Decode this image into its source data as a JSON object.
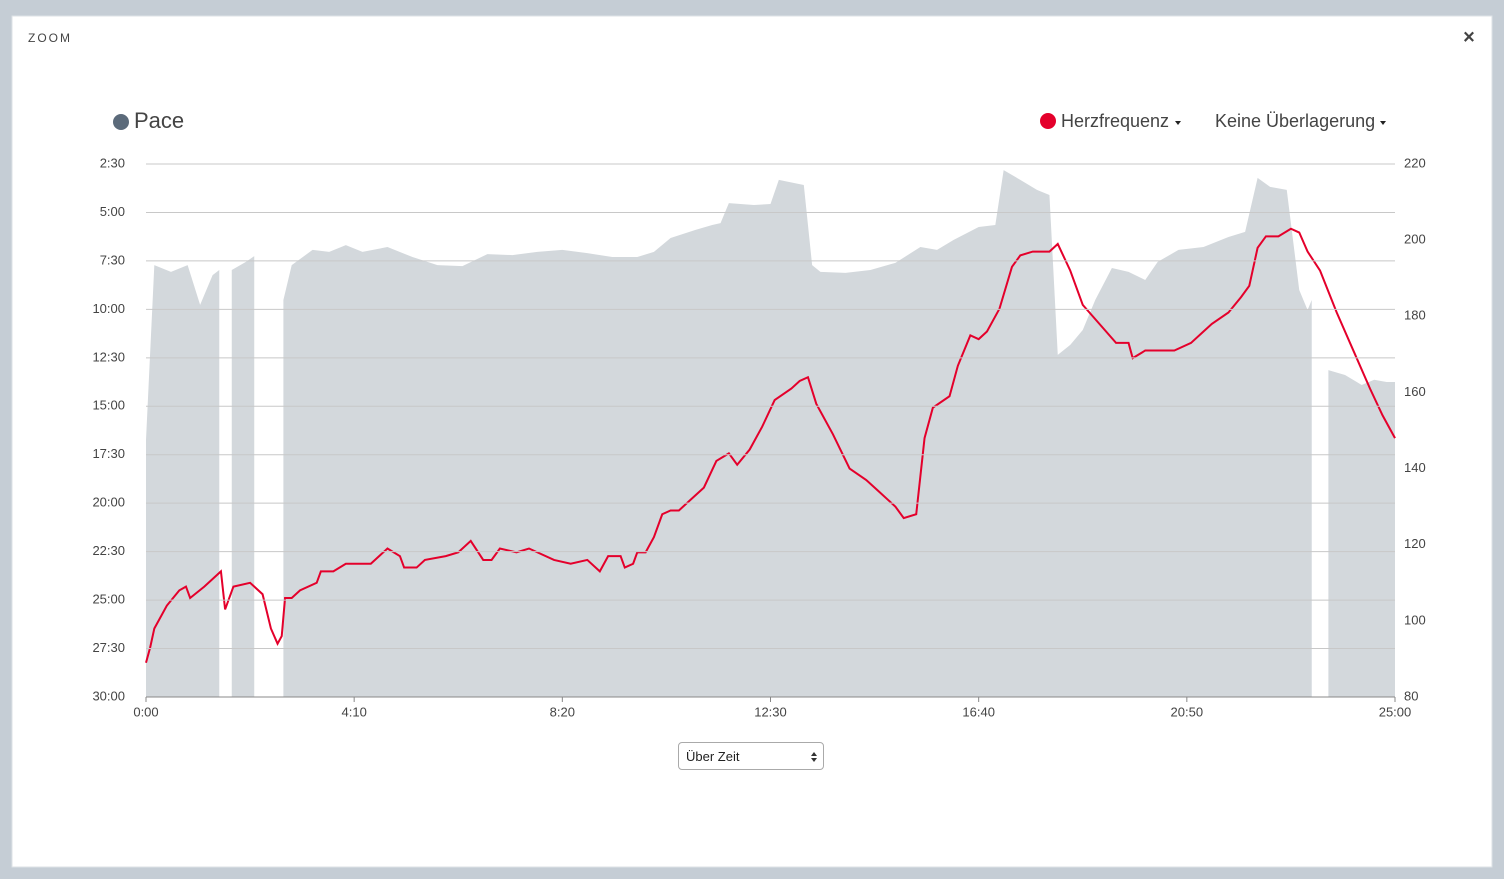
{
  "modal": {
    "title": "ZOOM",
    "close": "×"
  },
  "controls": {
    "overlay_select": "Keine Überlagerung",
    "x_mode_select": "Über Zeit"
  },
  "chart_data": {
    "type": "area-line",
    "series": [
      {
        "name": "Pace",
        "color": "#d3d8dc",
        "marker_color": "#5b6a7a",
        "x": [
          0,
          10,
          30,
          50,
          65,
          80,
          88,
          95,
          103,
          120,
          130,
          145,
          165,
          175,
          200,
          220,
          240,
          260,
          290,
          320,
          350,
          380,
          410,
          440,
          470,
          500,
          530,
          560,
          590,
          610,
          630,
          660,
          680,
          690,
          700,
          730,
          750,
          760,
          790,
          800,
          810,
          840,
          870,
          900,
          930,
          950,
          970,
          1000,
          1020,
          1030,
          1050,
          1070,
          1085,
          1095,
          1110,
          1125,
          1140,
          1160,
          1180,
          1200,
          1215,
          1240,
          1270,
          1300,
          1320,
          1335,
          1350,
          1370,
          1385,
          1395,
          1400,
          1410,
          1420,
          1440,
          1460,
          1475,
          1490,
          1500
        ],
        "values": [
          1004,
          463,
          484,
          463,
          586,
          494,
          478,
          null,
          478,
          453,
          435,
          null,
          571,
          463,
          416,
          422,
          401,
          422,
          407,
          438,
          463,
          466,
          429,
          432,
          422,
          416,
          426,
          438,
          438,
          422,
          379,
          354,
          339,
          333,
          271,
          277,
          274,
          199,
          215,
          463,
          484,
          487,
          478,
          456,
          407,
          416,
          385,
          345,
          339,
          169,
          199,
          230,
          246,
          741,
          710,
          664,
          571,
          472,
          484,
          509,
          453,
          416,
          407,
          376,
          360,
          193,
          221,
          230,
          540,
          602,
          571,
          null,
          788,
          803,
          834,
          818,
          825,
          825
        ]
      },
      {
        "name": "Herzfrequenz",
        "color": "#e4002b",
        "axis": "y2",
        "x": [
          0,
          5,
          10,
          25,
          40,
          48,
          53,
          70,
          90,
          95,
          105,
          125,
          140,
          150,
          158,
          163,
          167,
          175,
          185,
          205,
          210,
          225,
          240,
          270,
          290,
          305,
          310,
          325,
          335,
          360,
          375,
          390,
          405,
          415,
          425,
          445,
          460,
          490,
          510,
          530,
          545,
          555,
          570,
          575,
          585,
          590,
          600,
          610,
          620,
          630,
          640,
          655,
          670,
          685,
          700,
          710,
          725,
          740,
          755,
          775,
          785,
          795,
          805,
          825,
          845,
          865,
          880,
          900,
          910,
          925,
          935,
          945,
          965,
          975,
          990,
          1000,
          1010,
          1025,
          1040,
          1050,
          1065,
          1085,
          1095,
          1110,
          1125,
          1145,
          1165,
          1180,
          1185,
          1200,
          1215,
          1235,
          1255,
          1270,
          1280,
          1300,
          1315,
          1325,
          1335,
          1345,
          1360,
          1375,
          1385,
          1395,
          1410,
          1430,
          1450,
          1470,
          1485,
          1500
        ],
        "values": [
          89,
          93,
          98,
          104,
          108,
          109,
          106,
          109,
          113,
          103,
          109,
          110,
          107,
          98,
          94,
          96,
          106,
          106,
          108,
          110,
          113,
          113,
          115,
          115,
          119,
          117,
          114,
          114,
          116,
          117,
          118,
          121,
          116,
          116,
          119,
          118,
          119,
          116,
          115,
          116,
          113,
          117,
          117,
          114,
          115,
          118,
          118,
          122,
          128,
          129,
          129,
          132,
          135,
          142,
          144,
          141,
          145,
          151,
          158,
          161,
          163,
          164,
          157,
          149,
          140,
          137,
          134,
          130,
          127,
          128,
          148,
          156,
          159,
          167,
          175,
          174,
          176,
          182,
          193,
          196,
          197,
          197,
          199,
          192,
          183,
          178,
          173,
          173,
          169,
          171,
          171,
          171,
          173,
          176,
          178,
          181,
          185,
          188,
          198,
          201,
          201,
          203,
          202,
          197,
          192,
          181,
          171,
          161,
          154,
          148
        ]
      }
    ],
    "xlim": [
      0,
      1500
    ],
    "xticks": [
      {
        "value": 0,
        "label": "0:00"
      },
      {
        "value": 250,
        "label": "4:10"
      },
      {
        "value": 500,
        "label": "8:20"
      },
      {
        "value": 750,
        "label": "12:30"
      },
      {
        "value": 1000,
        "label": "16:40"
      },
      {
        "value": 1250,
        "label": "20:50"
      },
      {
        "value": 1500,
        "label": "25:00"
      }
    ],
    "ylim": [
      1800,
      150
    ],
    "yticks": [
      {
        "value": 150,
        "label": "2:30"
      },
      {
        "value": 300,
        "label": "5:00"
      },
      {
        "value": 450,
        "label": "7:30"
      },
      {
        "value": 600,
        "label": "10:00"
      },
      {
        "value": 750,
        "label": "12:30"
      },
      {
        "value": 900,
        "label": "15:00"
      },
      {
        "value": 1050,
        "label": "17:30"
      },
      {
        "value": 1200,
        "label": "20:00"
      },
      {
        "value": 1350,
        "label": "22:30"
      },
      {
        "value": 1500,
        "label": "25:00"
      },
      {
        "value": 1650,
        "label": "27:30"
      },
      {
        "value": 1800,
        "label": "30:00"
      }
    ],
    "y2lim": [
      80,
      220
    ],
    "y2ticks": [
      80,
      100,
      120,
      140,
      160,
      180,
      200,
      220
    ],
    "y2_color": "#e4002b",
    "grid": true
  }
}
